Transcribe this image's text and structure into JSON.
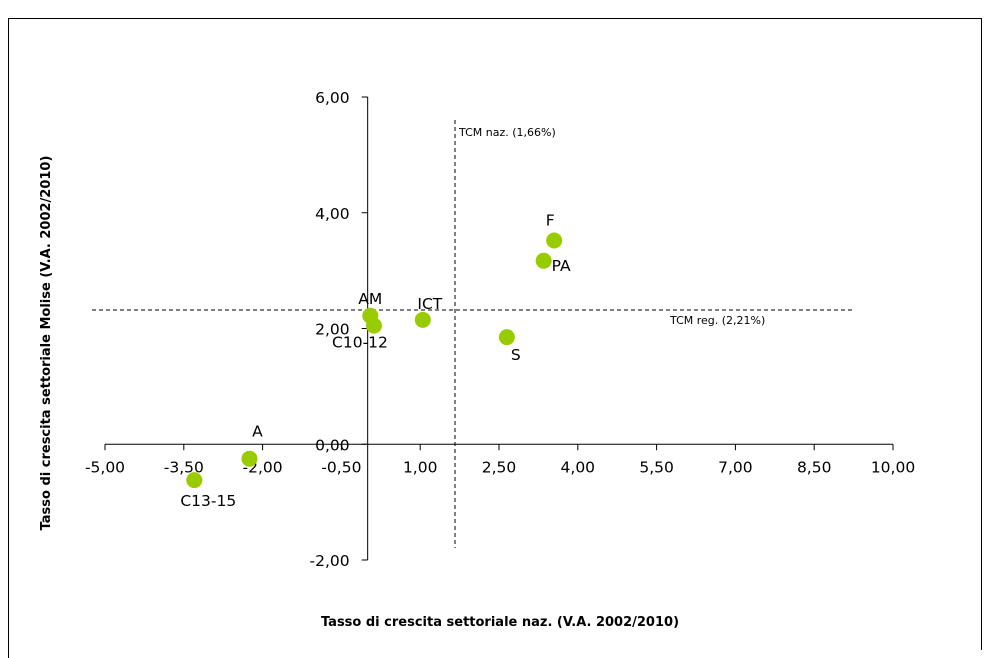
{
  "chart_data": {
    "type": "scatter",
    "xlabel": "Tasso di crescita settoriale naz. (V.A. 2002/2010)",
    "ylabel": "Tasso di crescita settoriale Molise (V.A. 2002/2010)",
    "xlim": [
      -5.0,
      10.0
    ],
    "ylim": [
      -2.0,
      6.0
    ],
    "x_ticks": [
      "-5,00",
      "-3,50",
      "-2,00",
      "-0,50",
      "1,00",
      "2,50",
      "4,00",
      "5,50",
      "7,00",
      "8,50",
      "10,00"
    ],
    "y_ticks": [
      "-2,00",
      "0,00",
      "2,00",
      "4,00",
      "6,00"
    ],
    "grid": false,
    "legend": "none",
    "marker_color": "#99cc00",
    "points": [
      {
        "label": "AM",
        "x": 0.05,
        "y": 2.22
      },
      {
        "label": "C10-12",
        "x": 0.12,
        "y": 2.05
      },
      {
        "label": "ICT",
        "x": 1.05,
        "y": 2.15
      },
      {
        "label": "A",
        "x": -2.25,
        "y": -0.25
      },
      {
        "label": "C13-15",
        "x": -3.3,
        "y": -0.62
      },
      {
        "label": "F",
        "x": 3.55,
        "y": 3.52
      },
      {
        "label": "PA",
        "x": 3.35,
        "y": 3.17
      },
      {
        "label": "S",
        "x": 2.65,
        "y": 1.85
      }
    ],
    "reference_lines": [
      {
        "orientation": "vertical",
        "value": 1.66,
        "label": "TCM naz. (1,66%)"
      },
      {
        "orientation": "horizontal",
        "value": 2.21,
        "label": "TCM reg. (2,21%)"
      }
    ]
  }
}
